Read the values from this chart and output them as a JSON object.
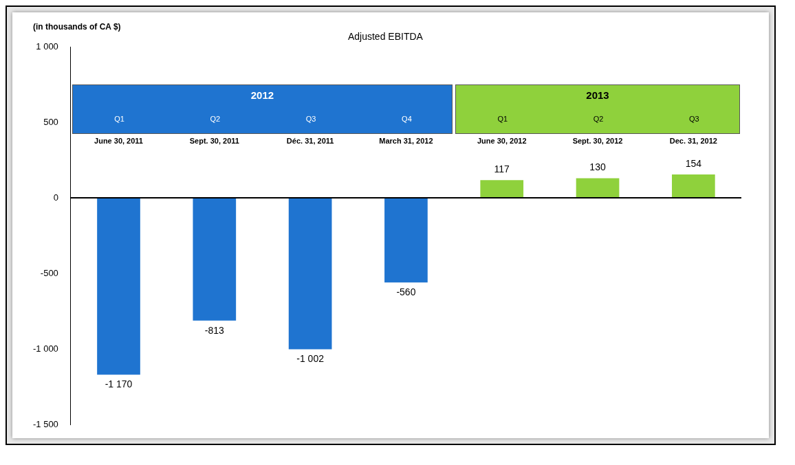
{
  "chart_data": {
    "type": "bar",
    "title": "Adjusted EBITDA",
    "ylabel": "(in thousands of CA $)",
    "categories": [
      "June 30, 2011",
      "Sept. 30, 2011",
      "Déc. 31, 2011",
      "March 31, 2012",
      "June 30, 2012",
      "Sept. 30, 2012",
      "Dec. 31, 2012"
    ],
    "values": [
      -1170,
      -813,
      -1002,
      -560,
      117,
      130,
      154
    ],
    "colors": [
      "#1f74d0",
      "#1f74d0",
      "#1f74d0",
      "#1f74d0",
      "#8fd13c",
      "#8fd13c",
      "#8fd13c"
    ],
    "value_labels": [
      "-1 170",
      "-813",
      "-1 002",
      "-560",
      "117",
      "130",
      "154"
    ],
    "annotations": [
      "2012",
      "Q1",
      "Q2",
      "Q3",
      "Q4",
      "2013",
      "Q1",
      "Q2",
      "Q3"
    ],
    "ylim": [
      -1500,
      1000
    ],
    "yticks": [
      {
        "value": -1500,
        "label": "-1 500"
      },
      {
        "value": -1000,
        "label": "-1 000"
      },
      {
        "value": -500,
        "label": "-500"
      },
      0,
      500,
      {
        "value": 1000,
        "label": "1 000"
      }
    ],
    "ref_lines": [
      {
        "axis": "y",
        "value": 0,
        "color": "#000000"
      }
    ],
    "grid": false,
    "legend": false
  }
}
